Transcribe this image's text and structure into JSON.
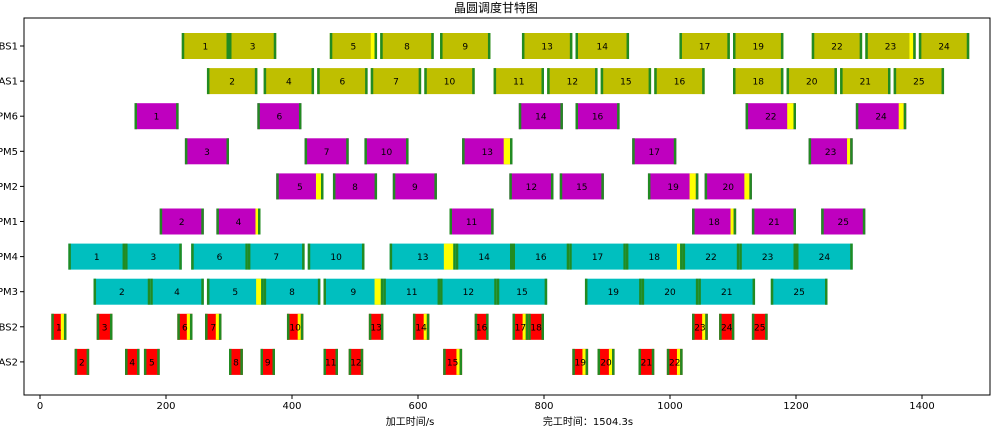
{
  "chart_data": {
    "type": "gantt",
    "title": "晶圆调度甘特图",
    "xlabel": "加工时间/s",
    "makespan_text": "完工时间：1504.3s",
    "xlim": [
      0,
      1500
    ],
    "xticks": [
      0,
      200,
      400,
      600,
      800,
      1000,
      1200,
      1400
    ],
    "rows": [
      "BS1",
      "AS1",
      "PM6",
      "PM5",
      "PM2",
      "PM1",
      "PM4",
      "PM3",
      "BS2",
      "AS2"
    ],
    "grid": false,
    "colors": {
      "robot": "#bfbf00",
      "pm_magenta": "#bf00bf",
      "pm_cyan": "#00bfbf",
      "buffer": "#ff0000",
      "edge": "#228b22",
      "wait": "#ffff00"
    },
    "rows_color": {
      "BS1": "robot",
      "AS1": "robot",
      "PM6": "pm_magenta",
      "PM5": "pm_magenta",
      "PM2": "pm_magenta",
      "PM1": "pm_magenta",
      "PM4": "pm_cyan",
      "PM3": "pm_cyan",
      "BS2": "buffer",
      "AS2": "buffer"
    },
    "tasks": [
      {
        "row": "BS1",
        "label": "1",
        "start": 225,
        "end": 300,
        "wait": 0
      },
      {
        "row": "BS1",
        "label": "3",
        "start": 300,
        "end": 375,
        "wait": 0
      },
      {
        "row": "BS1",
        "label": "5",
        "start": 460,
        "end": 535,
        "wait": 6
      },
      {
        "row": "BS1",
        "label": "8",
        "start": 540,
        "end": 625,
        "wait": 0
      },
      {
        "row": "BS1",
        "label": "9",
        "start": 635,
        "end": 715,
        "wait": 0
      },
      {
        "row": "BS1",
        "label": "13",
        "start": 765,
        "end": 845,
        "wait": 0
      },
      {
        "row": "BS1",
        "label": "14",
        "start": 850,
        "end": 935,
        "wait": 0
      },
      {
        "row": "BS1",
        "label": "17",
        "start": 1015,
        "end": 1095,
        "wait": 0
      },
      {
        "row": "BS1",
        "label": "19",
        "start": 1100,
        "end": 1180,
        "wait": 0
      },
      {
        "row": "BS1",
        "label": "22",
        "start": 1225,
        "end": 1305,
        "wait": 0
      },
      {
        "row": "BS1",
        "label": "23",
        "start": 1310,
        "end": 1390,
        "wait": 6
      },
      {
        "row": "BS1",
        "label": "24",
        "start": 1395,
        "end": 1475,
        "wait": 0
      },
      {
        "row": "AS1",
        "label": "2",
        "start": 265,
        "end": 345,
        "wait": 0
      },
      {
        "row": "AS1",
        "label": "4",
        "start": 355,
        "end": 435,
        "wait": 0
      },
      {
        "row": "AS1",
        "label": "6",
        "start": 440,
        "end": 520,
        "wait": 0
      },
      {
        "row": "AS1",
        "label": "7",
        "start": 525,
        "end": 605,
        "wait": 0
      },
      {
        "row": "AS1",
        "label": "10",
        "start": 610,
        "end": 690,
        "wait": 0
      },
      {
        "row": "AS1",
        "label": "11",
        "start": 720,
        "end": 800,
        "wait": 0
      },
      {
        "row": "AS1",
        "label": "12",
        "start": 805,
        "end": 885,
        "wait": 0
      },
      {
        "row": "AS1",
        "label": "15",
        "start": 890,
        "end": 970,
        "wait": 0
      },
      {
        "row": "AS1",
        "label": "16",
        "start": 975,
        "end": 1055,
        "wait": 0
      },
      {
        "row": "AS1",
        "label": "18",
        "start": 1100,
        "end": 1180,
        "wait": 0
      },
      {
        "row": "AS1",
        "label": "20",
        "start": 1185,
        "end": 1265,
        "wait": 0
      },
      {
        "row": "AS1",
        "label": "21",
        "start": 1270,
        "end": 1350,
        "wait": 0
      },
      {
        "row": "AS1",
        "label": "25",
        "start": 1355,
        "end": 1435,
        "wait": 0
      },
      {
        "row": "PM6",
        "label": "1",
        "start": 150,
        "end": 220,
        "wait": 0
      },
      {
        "row": "PM6",
        "label": "6",
        "start": 345,
        "end": 415,
        "wait": 0
      },
      {
        "row": "PM6",
        "label": "14",
        "start": 760,
        "end": 830,
        "wait": 0
      },
      {
        "row": "PM6",
        "label": "16",
        "start": 850,
        "end": 920,
        "wait": 0
      },
      {
        "row": "PM6",
        "label": "22",
        "start": 1120,
        "end": 1200,
        "wait": 10
      },
      {
        "row": "PM6",
        "label": "24",
        "start": 1295,
        "end": 1375,
        "wait": 8
      },
      {
        "row": "PM5",
        "label": "3",
        "start": 230,
        "end": 300,
        "wait": 0
      },
      {
        "row": "PM5",
        "label": "7",
        "start": 420,
        "end": 490,
        "wait": 0
      },
      {
        "row": "PM5",
        "label": "10",
        "start": 515,
        "end": 585,
        "wait": 0
      },
      {
        "row": "PM5",
        "label": "13",
        "start": 670,
        "end": 750,
        "wait": 10
      },
      {
        "row": "PM5",
        "label": "17",
        "start": 940,
        "end": 1010,
        "wait": 0
      },
      {
        "row": "PM5",
        "label": "23",
        "start": 1220,
        "end": 1290,
        "wait": 5
      },
      {
        "row": "PM2",
        "label": "5",
        "start": 375,
        "end": 450,
        "wait": 8
      },
      {
        "row": "PM2",
        "label": "8",
        "start": 465,
        "end": 535,
        "wait": 0
      },
      {
        "row": "PM2",
        "label": "9",
        "start": 560,
        "end": 630,
        "wait": 0
      },
      {
        "row": "PM2",
        "label": "12",
        "start": 745,
        "end": 815,
        "wait": 0
      },
      {
        "row": "PM2",
        "label": "15",
        "start": 825,
        "end": 895,
        "wait": 0
      },
      {
        "row": "PM2",
        "label": "19",
        "start": 965,
        "end": 1045,
        "wait": 10
      },
      {
        "row": "PM2",
        "label": "20",
        "start": 1055,
        "end": 1130,
        "wait": 8
      },
      {
        "row": "PM1",
        "label": "2",
        "start": 190,
        "end": 260,
        "wait": 0
      },
      {
        "row": "PM1",
        "label": "4",
        "start": 280,
        "end": 350,
        "wait": 4
      },
      {
        "row": "PM1",
        "label": "11",
        "start": 650,
        "end": 720,
        "wait": 0
      },
      {
        "row": "PM1",
        "label": "18",
        "start": 1035,
        "end": 1105,
        "wait": 5
      },
      {
        "row": "PM1",
        "label": "21",
        "start": 1130,
        "end": 1200,
        "wait": 0
      },
      {
        "row": "PM1",
        "label": "25",
        "start": 1240,
        "end": 1310,
        "wait": 0
      },
      {
        "row": "PM4",
        "label": "1",
        "start": 45,
        "end": 135,
        "wait": 0
      },
      {
        "row": "PM4",
        "label": "3",
        "start": 135,
        "end": 225,
        "wait": 0
      },
      {
        "row": "PM4",
        "label": "6",
        "start": 240,
        "end": 330,
        "wait": 0
      },
      {
        "row": "PM4",
        "label": "7",
        "start": 330,
        "end": 420,
        "wait": 0
      },
      {
        "row": "PM4",
        "label": "10",
        "start": 425,
        "end": 515,
        "wait": 0
      },
      {
        "row": "PM4",
        "label": "13",
        "start": 555,
        "end": 660,
        "wait": 15
      },
      {
        "row": "PM4",
        "label": "14",
        "start": 660,
        "end": 750,
        "wait": 0
      },
      {
        "row": "PM4",
        "label": "16",
        "start": 750,
        "end": 840,
        "wait": 0
      },
      {
        "row": "PM4",
        "label": "17",
        "start": 840,
        "end": 930,
        "wait": 0
      },
      {
        "row": "PM4",
        "label": "18",
        "start": 930,
        "end": 1020,
        "wait": 5
      },
      {
        "row": "PM4",
        "label": "22",
        "start": 1020,
        "end": 1110,
        "wait": 0
      },
      {
        "row": "PM4",
        "label": "23",
        "start": 1110,
        "end": 1200,
        "wait": 0
      },
      {
        "row": "PM4",
        "label": "24",
        "start": 1200,
        "end": 1290,
        "wait": 0
      },
      {
        "row": "PM3",
        "label": "2",
        "start": 85,
        "end": 175,
        "wait": 0
      },
      {
        "row": "PM3",
        "label": "4",
        "start": 175,
        "end": 260,
        "wait": 0
      },
      {
        "row": "PM3",
        "label": "5",
        "start": 265,
        "end": 355,
        "wait": 8
      },
      {
        "row": "PM3",
        "label": "8",
        "start": 355,
        "end": 445,
        "wait": 0
      },
      {
        "row": "PM3",
        "label": "9",
        "start": 450,
        "end": 545,
        "wait": 10
      },
      {
        "row": "PM3",
        "label": "11",
        "start": 545,
        "end": 635,
        "wait": 0
      },
      {
        "row": "PM3",
        "label": "12",
        "start": 635,
        "end": 725,
        "wait": 0
      },
      {
        "row": "PM3",
        "label": "15",
        "start": 725,
        "end": 805,
        "wait": 0
      },
      {
        "row": "PM3",
        "label": "19",
        "start": 865,
        "end": 955,
        "wait": 0
      },
      {
        "row": "PM3",
        "label": "20",
        "start": 955,
        "end": 1045,
        "wait": 0
      },
      {
        "row": "PM3",
        "label": "21",
        "start": 1045,
        "end": 1135,
        "wait": 0
      },
      {
        "row": "PM3",
        "label": "25",
        "start": 1160,
        "end": 1250,
        "wait": 0
      },
      {
        "row": "BS2",
        "label": "1",
        "start": 18,
        "end": 42,
        "wait": 5
      },
      {
        "row": "BS2",
        "label": "3",
        "start": 90,
        "end": 115,
        "wait": 0
      },
      {
        "row": "BS2",
        "label": "6",
        "start": 218,
        "end": 242,
        "wait": 5
      },
      {
        "row": "BS2",
        "label": "7",
        "start": 262,
        "end": 288,
        "wait": 5
      },
      {
        "row": "BS2",
        "label": "10",
        "start": 392,
        "end": 418,
        "wait": 5
      },
      {
        "row": "BS2",
        "label": "13",
        "start": 522,
        "end": 545,
        "wait": 0
      },
      {
        "row": "BS2",
        "label": "14",
        "start": 592,
        "end": 618,
        "wait": 5
      },
      {
        "row": "BS2",
        "label": "16",
        "start": 690,
        "end": 712,
        "wait": 0
      },
      {
        "row": "BS2",
        "label": "17",
        "start": 750,
        "end": 775,
        "wait": 5
      },
      {
        "row": "BS2",
        "label": "18",
        "start": 775,
        "end": 800,
        "wait": 0
      },
      {
        "row": "BS2",
        "label": "23",
        "start": 1035,
        "end": 1060,
        "wait": 5
      },
      {
        "row": "BS2",
        "label": "24",
        "start": 1078,
        "end": 1102,
        "wait": 0
      },
      {
        "row": "BS2",
        "label": "25",
        "start": 1130,
        "end": 1155,
        "wait": 0
      },
      {
        "row": "AS2",
        "label": "2",
        "start": 55,
        "end": 78,
        "wait": 0
      },
      {
        "row": "AS2",
        "label": "4",
        "start": 135,
        "end": 158,
        "wait": 0
      },
      {
        "row": "AS2",
        "label": "5",
        "start": 165,
        "end": 190,
        "wait": 0
      },
      {
        "row": "AS2",
        "label": "8",
        "start": 300,
        "end": 322,
        "wait": 0
      },
      {
        "row": "AS2",
        "label": "9",
        "start": 350,
        "end": 373,
        "wait": 0
      },
      {
        "row": "AS2",
        "label": "11",
        "start": 450,
        "end": 473,
        "wait": 0
      },
      {
        "row": "AS2",
        "label": "12",
        "start": 490,
        "end": 513,
        "wait": 0
      },
      {
        "row": "AS2",
        "label": "15",
        "start": 640,
        "end": 670,
        "wait": 5
      },
      {
        "row": "AS2",
        "label": "19",
        "start": 845,
        "end": 870,
        "wait": 5
      },
      {
        "row": "AS2",
        "label": "20",
        "start": 885,
        "end": 912,
        "wait": 5
      },
      {
        "row": "AS2",
        "label": "21",
        "start": 950,
        "end": 975,
        "wait": 0
      },
      {
        "row": "AS2",
        "label": "22",
        "start": 995,
        "end": 1020,
        "wait": 5
      }
    ]
  }
}
